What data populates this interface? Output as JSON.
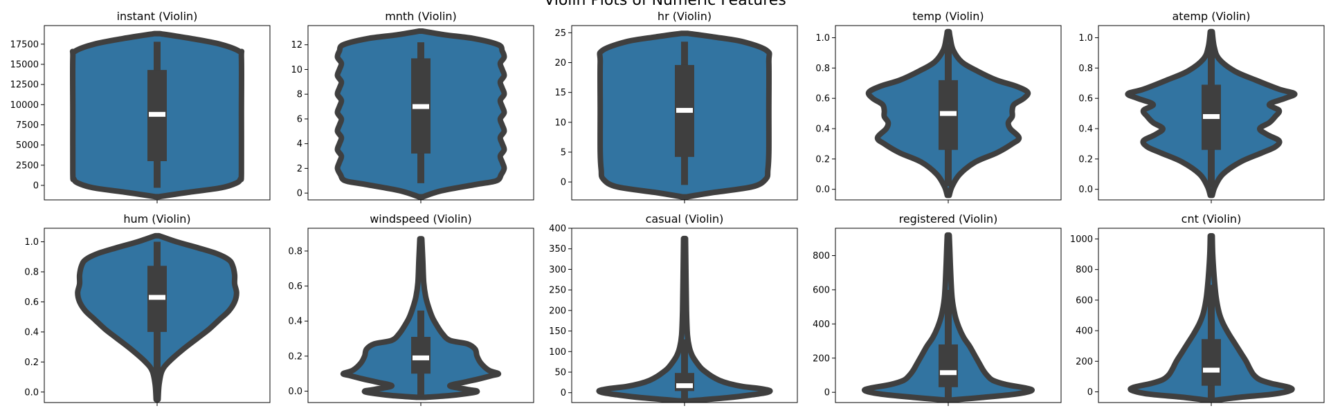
{
  "figure": {
    "suptitle": "Violin Plots of Numeric Features"
  },
  "style": {
    "violin_fill": "#3274a1",
    "outline": "#3f3f3f",
    "median": "#ffffff",
    "axes_edge": "#000000"
  },
  "chart_data": [
    {
      "type": "violin",
      "title": "instant (Violin)",
      "ylim": [
        -1800,
        19800
      ],
      "yticks": [
        0,
        2500,
        5000,
        7500,
        10000,
        12500,
        15000,
        17500
      ],
      "ytick_labels": [
        "0",
        "2500",
        "5000",
        "7500",
        "10000",
        "12500",
        "15000",
        "17500"
      ],
      "stats": {
        "q1": 3000,
        "median": 8800,
        "q3": 14300,
        "whisker_low": -300,
        "whisker_high": 17800
      },
      "density": [
        [
          -1400,
          0.02
        ],
        [
          -900,
          0.3
        ],
        [
          -300,
          0.66
        ],
        [
          300,
          0.82
        ],
        [
          800,
          0.86
        ],
        [
          1500,
          0.87
        ],
        [
          8700,
          0.87
        ],
        [
          15800,
          0.87
        ],
        [
          16600,
          0.85
        ],
        [
          17500,
          0.65
        ],
        [
          18200,
          0.35
        ],
        [
          18800,
          0.03
        ]
      ]
    },
    {
      "type": "violin",
      "title": "mnth (Violin)",
      "ylim": [
        -0.55,
        13.55
      ],
      "yticks": [
        0,
        2,
        4,
        6,
        8,
        10,
        12
      ],
      "ytick_labels": [
        "0",
        "2",
        "4",
        "6",
        "8",
        "10",
        "12"
      ],
      "stats": {
        "q1": 3.2,
        "median": 7.0,
        "q3": 10.9,
        "whisker_low": 0.8,
        "whisker_high": 12.2
      },
      "density": [
        [
          -0.3,
          0.02
        ],
        [
          0.2,
          0.22
        ],
        [
          0.7,
          0.57
        ],
        [
          1.0,
          0.78
        ],
        [
          1.5,
          0.83
        ],
        [
          2.0,
          0.86
        ],
        [
          2.5,
          0.84
        ],
        [
          3.0,
          0.82
        ],
        [
          3.5,
          0.86
        ],
        [
          4.0,
          0.84
        ],
        [
          4.5,
          0.82
        ],
        [
          5.0,
          0.86
        ],
        [
          5.5,
          0.84
        ],
        [
          6.0,
          0.82
        ],
        [
          6.5,
          0.86
        ],
        [
          7.0,
          0.84
        ],
        [
          7.5,
          0.82
        ],
        [
          8.0,
          0.86
        ],
        [
          8.5,
          0.84
        ],
        [
          9.0,
          0.82
        ],
        [
          9.5,
          0.86
        ],
        [
          10.0,
          0.84
        ],
        [
          10.5,
          0.82
        ],
        [
          11.0,
          0.86
        ],
        [
          11.5,
          0.84
        ],
        [
          12.0,
          0.8
        ],
        [
          12.5,
          0.55
        ],
        [
          12.8,
          0.25
        ],
        [
          13.1,
          0.02
        ]
      ]
    },
    {
      "type": "violin",
      "title": "hr (Violin)",
      "ylim": [
        -3.0,
        26.2
      ],
      "yticks": [
        0,
        5,
        10,
        15,
        20,
        25
      ],
      "ytick_labels": [
        "0",
        "5",
        "10",
        "15",
        "20",
        "25"
      ],
      "stats": {
        "q1": 4.2,
        "median": 12.0,
        "q3": 19.6,
        "whisker_low": -0.5,
        "whisker_high": 23.5
      },
      "density": [
        [
          -2.5,
          0.02
        ],
        [
          -1.8,
          0.28
        ],
        [
          -0.8,
          0.7
        ],
        [
          0.5,
          0.84
        ],
        [
          2.0,
          0.86
        ],
        [
          5.0,
          0.87
        ],
        [
          12.0,
          0.87
        ],
        [
          20.0,
          0.87
        ],
        [
          22.0,
          0.85
        ],
        [
          23.5,
          0.6
        ],
        [
          24.3,
          0.3
        ],
        [
          24.9,
          0.03
        ]
      ]
    },
    {
      "type": "violin",
      "title": "temp (Violin)",
      "ylim": [
        -0.07,
        1.08
      ],
      "yticks": [
        0.0,
        0.2,
        0.4,
        0.6,
        0.8,
        1.0
      ],
      "ytick_labels": [
        "0.0",
        "0.2",
        "0.4",
        "0.6",
        "0.8",
        "1.0"
      ],
      "stats": {
        "q1": 0.26,
        "median": 0.5,
        "q3": 0.72,
        "whisker_low": 0.02,
        "whisker_high": 0.96
      },
      "density": [
        [
          -0.04,
          0.01
        ],
        [
          0.02,
          0.04
        ],
        [
          0.1,
          0.12
        ],
        [
          0.18,
          0.28
        ],
        [
          0.24,
          0.5
        ],
        [
          0.3,
          0.66
        ],
        [
          0.34,
          0.73
        ],
        [
          0.4,
          0.64
        ],
        [
          0.44,
          0.62
        ],
        [
          0.48,
          0.66
        ],
        [
          0.52,
          0.66
        ],
        [
          0.56,
          0.68
        ],
        [
          0.6,
          0.78
        ],
        [
          0.64,
          0.82
        ],
        [
          0.68,
          0.7
        ],
        [
          0.72,
          0.5
        ],
        [
          0.78,
          0.3
        ],
        [
          0.84,
          0.14
        ],
        [
          0.92,
          0.05
        ],
        [
          1.0,
          0.02
        ],
        [
          1.04,
          0.01
        ]
      ]
    },
    {
      "type": "violin",
      "title": "atemp (Violin)",
      "ylim": [
        -0.07,
        1.08
      ],
      "yticks": [
        0.0,
        0.2,
        0.4,
        0.6,
        0.8,
        1.0
      ],
      "ytick_labels": [
        "0.0",
        "0.2",
        "0.4",
        "0.6",
        "0.8",
        "1.0"
      ],
      "stats": {
        "q1": 0.26,
        "median": 0.48,
        "q3": 0.69,
        "whisker_low": 0.01,
        "whisker_high": 0.95
      },
      "density": [
        [
          -0.04,
          0.01
        ],
        [
          0.02,
          0.04
        ],
        [
          0.1,
          0.12
        ],
        [
          0.18,
          0.3
        ],
        [
          0.24,
          0.52
        ],
        [
          0.28,
          0.66
        ],
        [
          0.32,
          0.7
        ],
        [
          0.36,
          0.58
        ],
        [
          0.4,
          0.5
        ],
        [
          0.44,
          0.6
        ],
        [
          0.48,
          0.66
        ],
        [
          0.52,
          0.7
        ],
        [
          0.56,
          0.6
        ],
        [
          0.6,
          0.76
        ],
        [
          0.63,
          0.86
        ],
        [
          0.66,
          0.7
        ],
        [
          0.72,
          0.46
        ],
        [
          0.78,
          0.24
        ],
        [
          0.86,
          0.08
        ],
        [
          0.94,
          0.03
        ],
        [
          1.04,
          0.01
        ]
      ]
    },
    {
      "type": "violin",
      "title": "hum (Violin)",
      "ylim": [
        -0.07,
        1.09
      ],
      "yticks": [
        0.0,
        0.2,
        0.4,
        0.6,
        0.8,
        1.0
      ],
      "ytick_labels": [
        "0.0",
        "0.2",
        "0.4",
        "0.6",
        "0.8",
        "1.0"
      ],
      "stats": {
        "q1": 0.4,
        "median": 0.63,
        "q3": 0.84,
        "whisker_low": 0.08,
        "whisker_high": 1.0
      },
      "density": [
        [
          -0.05,
          0.01
        ],
        [
          0.05,
          0.02
        ],
        [
          0.14,
          0.05
        ],
        [
          0.2,
          0.12
        ],
        [
          0.28,
          0.26
        ],
        [
          0.36,
          0.42
        ],
        [
          0.42,
          0.54
        ],
        [
          0.48,
          0.64
        ],
        [
          0.54,
          0.74
        ],
        [
          0.6,
          0.8
        ],
        [
          0.66,
          0.82
        ],
        [
          0.72,
          0.8
        ],
        [
          0.78,
          0.8
        ],
        [
          0.84,
          0.78
        ],
        [
          0.88,
          0.74
        ],
        [
          0.92,
          0.62
        ],
        [
          0.96,
          0.42
        ],
        [
          1.0,
          0.2
        ],
        [
          1.04,
          0.02
        ]
      ]
    },
    {
      "type": "violin",
      "title": "windspeed (Violin)",
      "ylim": [
        -0.065,
        0.93
      ],
      "yticks": [
        0.0,
        0.2,
        0.4,
        0.6,
        0.8
      ],
      "ytick_labels": [
        "0.0",
        "0.2",
        "0.4",
        "0.6",
        "0.8"
      ],
      "stats": {
        "q1": 0.1,
        "median": 0.19,
        "q3": 0.31,
        "whisker_low": -0.03,
        "whisker_high": 0.46
      },
      "density": [
        [
          -0.035,
          0.04
        ],
        [
          -0.025,
          0.3
        ],
        [
          -0.01,
          0.52
        ],
        [
          0.0,
          0.58
        ],
        [
          0.01,
          0.48
        ],
        [
          0.03,
          0.3
        ],
        [
          0.05,
          0.44
        ],
        [
          0.07,
          0.6
        ],
        [
          0.09,
          0.74
        ],
        [
          0.1,
          0.8
        ],
        [
          0.12,
          0.7
        ],
        [
          0.16,
          0.62
        ],
        [
          0.2,
          0.58
        ],
        [
          0.24,
          0.56
        ],
        [
          0.27,
          0.48
        ],
        [
          0.29,
          0.3
        ],
        [
          0.33,
          0.22
        ],
        [
          0.38,
          0.16
        ],
        [
          0.42,
          0.12
        ],
        [
          0.48,
          0.08
        ],
        [
          0.54,
          0.05
        ],
        [
          0.62,
          0.03
        ],
        [
          0.75,
          0.02
        ],
        [
          0.87,
          0.01
        ]
      ]
    },
    {
      "type": "violin",
      "title": "casual (Violin)",
      "ylim": [
        -24,
        400
      ],
      "yticks": [
        0,
        50,
        100,
        150,
        200,
        250,
        300,
        350,
        400
      ],
      "ytick_labels": [
        "0",
        "50",
        "100",
        "150",
        "200",
        "250",
        "300",
        "350",
        "400"
      ],
      "stats": {
        "q1": 4,
        "median": 17,
        "q3": 48,
        "whisker_low": -20,
        "whisker_high": 130
      },
      "density": [
        [
          -20,
          0.04
        ],
        [
          -12,
          0.45
        ],
        [
          -5,
          0.7
        ],
        [
          0,
          0.84
        ],
        [
          5,
          0.88
        ],
        [
          10,
          0.78
        ],
        [
          15,
          0.6
        ],
        [
          22,
          0.46
        ],
        [
          30,
          0.36
        ],
        [
          40,
          0.28
        ],
        [
          50,
          0.22
        ],
        [
          60,
          0.17
        ],
        [
          75,
          0.12
        ],
        [
          90,
          0.08
        ],
        [
          110,
          0.05
        ],
        [
          140,
          0.03
        ],
        [
          200,
          0.02
        ],
        [
          280,
          0.015
        ],
        [
          375,
          0.01
        ]
      ]
    },
    {
      "type": "violin",
      "title": "registered (Violin)",
      "ylim": [
        -60,
        960
      ],
      "yticks": [
        0,
        200,
        400,
        600,
        800
      ],
      "ytick_labels": [
        "0",
        "200",
        "400",
        "600",
        "800"
      ],
      "stats": {
        "q1": 30,
        "median": 115,
        "q3": 280,
        "whisker_low": -40,
        "whisker_high": 600
      },
      "density": [
        [
          -45,
          0.04
        ],
        [
          -30,
          0.35
        ],
        [
          -10,
          0.7
        ],
        [
          10,
          0.86
        ],
        [
          25,
          0.8
        ],
        [
          45,
          0.6
        ],
        [
          70,
          0.46
        ],
        [
          100,
          0.4
        ],
        [
          130,
          0.36
        ],
        [
          170,
          0.32
        ],
        [
          220,
          0.27
        ],
        [
          270,
          0.22
        ],
        [
          320,
          0.16
        ],
        [
          380,
          0.11
        ],
        [
          450,
          0.07
        ],
        [
          550,
          0.04
        ],
        [
          700,
          0.025
        ],
        [
          850,
          0.015
        ],
        [
          920,
          0.01
        ]
      ]
    },
    {
      "type": "violin",
      "title": "cnt (Violin)",
      "ylim": [
        -70,
        1070
      ],
      "yticks": [
        0,
        200,
        400,
        600,
        800,
        1000
      ],
      "ytick_labels": [
        "0",
        "200",
        "400",
        "600",
        "800",
        "1000"
      ],
      "stats": {
        "q1": 40,
        "median": 142,
        "q3": 345,
        "whisker_low": -50,
        "whisker_high": 700
      },
      "density": [
        [
          -55,
          0.04
        ],
        [
          -35,
          0.3
        ],
        [
          -15,
          0.64
        ],
        [
          10,
          0.82
        ],
        [
          30,
          0.8
        ],
        [
          55,
          0.62
        ],
        [
          80,
          0.5
        ],
        [
          110,
          0.44
        ],
        [
          150,
          0.4
        ],
        [
          200,
          0.36
        ],
        [
          260,
          0.3
        ],
        [
          320,
          0.24
        ],
        [
          380,
          0.18
        ],
        [
          450,
          0.12
        ],
        [
          520,
          0.08
        ],
        [
          620,
          0.05
        ],
        [
          750,
          0.03
        ],
        [
          900,
          0.015
        ],
        [
          1020,
          0.01
        ]
      ]
    }
  ]
}
